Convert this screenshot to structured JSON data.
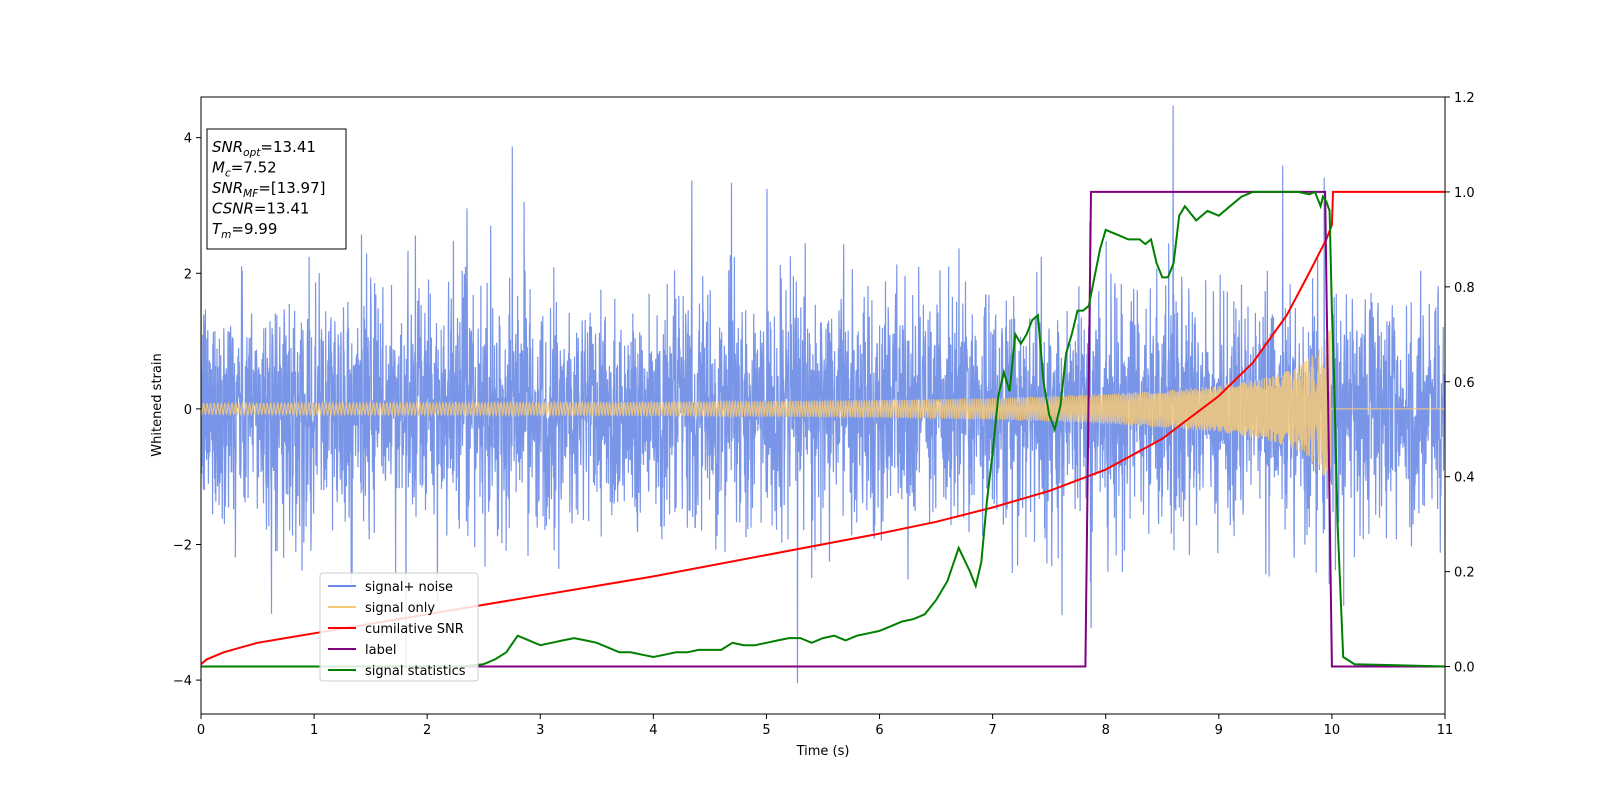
{
  "chart_data": {
    "type": "line",
    "title": "",
    "xlabel": "Time (s)",
    "ylabel": "Whitened strain",
    "xlim": [
      0,
      11
    ],
    "ylim_left": [
      -4.5,
      4.6
    ],
    "ylim_right": [
      -0.1,
      1.2
    ],
    "x_ticks": [
      0,
      1,
      2,
      3,
      4,
      5,
      6,
      7,
      8,
      9,
      10,
      11
    ],
    "y_ticks_left": [
      -4,
      -2,
      0,
      2,
      4
    ],
    "y_ticks_right": [
      0.0,
      0.2,
      0.4,
      0.6,
      0.8,
      1.0,
      1.2
    ],
    "legend_position": "lower-left",
    "grid": false,
    "info_box": {
      "lines": [
        {
          "base": "SNR",
          "sub": "opt",
          "value": "=13.41"
        },
        {
          "base": "M",
          "sub": "c",
          "value": "=7.52"
        },
        {
          "base": "SNR",
          "sub": "MF",
          "value": "=[13.97]"
        },
        {
          "base": "CSNR",
          "sub": "",
          "value": "=13.41"
        },
        {
          "base": "T",
          "sub": "m",
          "value": "=9.99"
        }
      ]
    },
    "series": [
      {
        "name": "signal+ noise",
        "axis": "left",
        "color": "#6a8ae6",
        "description_kind": "noise",
        "noise_sigma": 0.85,
        "x_range": [
          0,
          11
        ]
      },
      {
        "name": "signal only",
        "axis": "left",
        "color": "#f5c97a",
        "description_kind": "chirp",
        "x_range": [
          0,
          9.99
        ],
        "envelope": {
          "x": [
            0,
            2,
            4,
            6,
            7,
            8,
            8.5,
            9,
            9.4,
            9.7,
            9.9,
            9.99
          ],
          "y": [
            0.08,
            0.09,
            0.1,
            0.13,
            0.16,
            0.22,
            0.27,
            0.34,
            0.45,
            0.62,
            0.9,
            1.2
          ]
        }
      },
      {
        "name": "cumilative SNR",
        "axis": "right",
        "color": "#ff0000",
        "x": [
          0,
          0.05,
          0.2,
          0.5,
          1,
          2,
          3,
          4,
          5,
          6,
          6.5,
          7,
          7.5,
          8,
          8.5,
          9,
          9.3,
          9.6,
          9.8,
          9.95,
          10.0,
          10.01,
          11
        ],
        "y": [
          0.005,
          0.015,
          0.03,
          0.05,
          0.07,
          0.11,
          0.15,
          0.19,
          0.235,
          0.28,
          0.305,
          0.335,
          0.37,
          0.415,
          0.48,
          0.57,
          0.64,
          0.74,
          0.83,
          0.9,
          0.93,
          1.0,
          1.0
        ]
      },
      {
        "name": "label",
        "axis": "right",
        "color": "#800080",
        "x": [
          0,
          7.82,
          7.87,
          9.94,
          10.0,
          11
        ],
        "y": [
          0.0,
          0.0,
          1.0,
          1.0,
          0.0,
          0.0
        ]
      },
      {
        "name": "signal statistics",
        "axis": "right",
        "color": "#008000",
        "x": [
          0,
          2.3,
          2.5,
          2.6,
          2.7,
          2.8,
          2.9,
          3.0,
          3.1,
          3.2,
          3.3,
          3.4,
          3.5,
          3.6,
          3.7,
          3.8,
          3.9,
          4.0,
          4.1,
          4.2,
          4.3,
          4.4,
          4.5,
          4.6,
          4.7,
          4.8,
          4.9,
          5.0,
          5.1,
          5.2,
          5.3,
          5.4,
          5.5,
          5.6,
          5.7,
          5.8,
          5.9,
          6.0,
          6.1,
          6.2,
          6.3,
          6.4,
          6.5,
          6.6,
          6.7,
          6.8,
          6.85,
          6.9,
          6.95,
          7.0,
          7.05,
          7.1,
          7.15,
          7.2,
          7.25,
          7.3,
          7.35,
          7.4,
          7.45,
          7.5,
          7.55,
          7.6,
          7.65,
          7.7,
          7.75,
          7.8,
          7.85,
          7.9,
          7.95,
          8.0,
          8.1,
          8.2,
          8.3,
          8.35,
          8.4,
          8.45,
          8.5,
          8.55,
          8.6,
          8.65,
          8.7,
          8.8,
          8.9,
          9.0,
          9.1,
          9.2,
          9.3,
          9.4,
          9.5,
          9.6,
          9.7,
          9.8,
          9.85,
          9.9,
          9.92,
          9.95,
          9.98,
          10.0,
          10.02,
          10.05,
          10.1,
          10.2,
          11
        ],
        "y": [
          0.0,
          0.0,
          0.005,
          0.015,
          0.03,
          0.065,
          0.055,
          0.045,
          0.05,
          0.055,
          0.06,
          0.055,
          0.05,
          0.04,
          0.03,
          0.03,
          0.025,
          0.02,
          0.025,
          0.03,
          0.03,
          0.035,
          0.035,
          0.035,
          0.05,
          0.045,
          0.045,
          0.05,
          0.055,
          0.06,
          0.06,
          0.05,
          0.06,
          0.065,
          0.055,
          0.065,
          0.07,
          0.075,
          0.085,
          0.095,
          0.1,
          0.11,
          0.14,
          0.18,
          0.25,
          0.2,
          0.17,
          0.22,
          0.35,
          0.45,
          0.57,
          0.62,
          0.58,
          0.7,
          0.68,
          0.7,
          0.73,
          0.74,
          0.6,
          0.53,
          0.5,
          0.55,
          0.66,
          0.7,
          0.75,
          0.75,
          0.76,
          0.82,
          0.88,
          0.92,
          0.91,
          0.9,
          0.9,
          0.89,
          0.9,
          0.85,
          0.82,
          0.82,
          0.85,
          0.95,
          0.97,
          0.94,
          0.96,
          0.95,
          0.97,
          0.99,
          1.0,
          1.0,
          1.0,
          1.0,
          1.0,
          0.995,
          1.0,
          0.97,
          0.99,
          0.98,
          0.96,
          0.75,
          0.6,
          0.3,
          0.02,
          0.005,
          0.0
        ]
      }
    ]
  }
}
